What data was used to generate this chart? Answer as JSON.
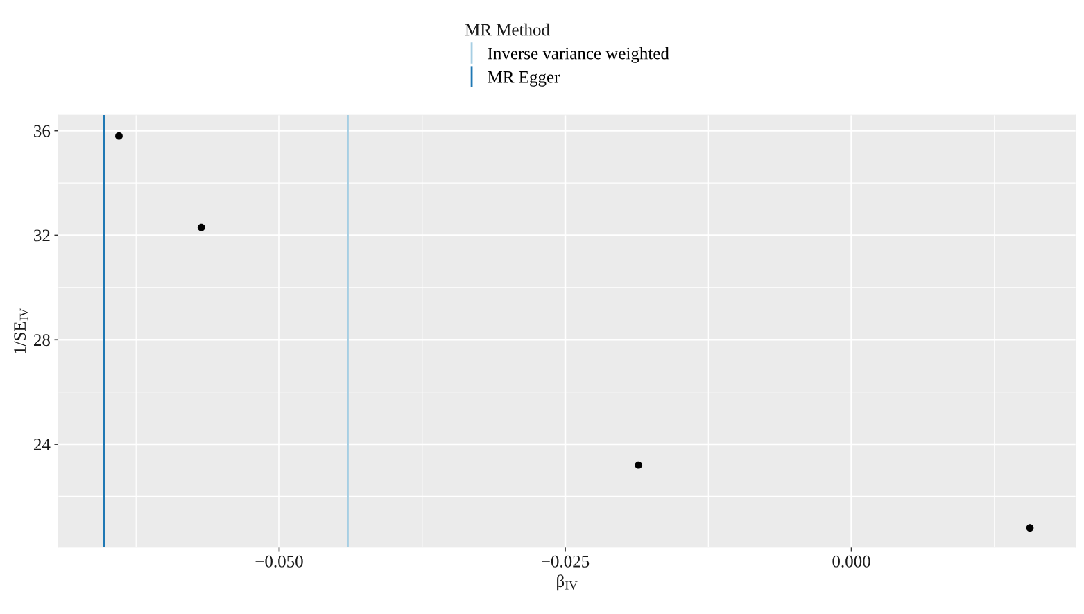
{
  "chart_data": {
    "type": "scatter",
    "legend_title": "MR Method",
    "xlabel": "β$_{IV}$",
    "ylabel": "1/SE$_{IV}$",
    "series": [
      {
        "color": "#000000",
        "x": [
          -0.064,
          -0.0568,
          -0.0186,
          0.0156
        ],
        "values": [
          35.8,
          32.3,
          23.2,
          20.8
        ]
      }
    ],
    "ref_lines": [
      {
        "axis": "x",
        "value": -0.044,
        "label": "Inverse variance weighted",
        "color": "#a6cee3",
        "line_style": "solid"
      },
      {
        "axis": "x",
        "value": -0.0653,
        "label": "MR Egger",
        "color": "#1f78b4",
        "line_style": "solid"
      }
    ],
    "xlim": [
      -0.0693,
      0.0196
    ],
    "ylim": [
      20.05,
      36.6
    ],
    "xticks": [
      {
        "value": -0.05,
        "label": "−0.050"
      },
      {
        "value": -0.025,
        "label": "−0.025"
      },
      {
        "value": 0,
        "label": "0.000"
      }
    ],
    "yticks": [
      24,
      28,
      32,
      36
    ],
    "grid": true,
    "legend": "top",
    "marker": "circle"
  }
}
